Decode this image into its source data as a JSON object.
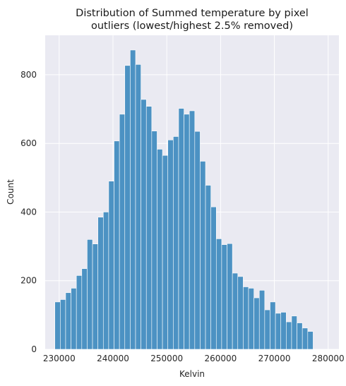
{
  "chart_data": {
    "type": "bar",
    "title_line1": "Distribution of Summed temperature by pixel",
    "title_line2": "outliers (lowest/highest 2.5% removed)",
    "xlabel": "Kelvin",
    "ylabel": "Count",
    "xlim": [
      227400,
      282000
    ],
    "ylim": [
      0,
      915
    ],
    "xticks": [
      230000,
      240000,
      250000,
      260000,
      270000,
      280000
    ],
    "xtick_labels": [
      "230000",
      "240000",
      "250000",
      "260000",
      "270000",
      "280000"
    ],
    "yticks": [
      0,
      200,
      400,
      600,
      800
    ],
    "ytick_labels": [
      "0",
      "200",
      "400",
      "600",
      "800"
    ],
    "grid": true,
    "background_color": "#eaeaf2",
    "bar_color": "#4c92c3",
    "bar_edge_color": "#ffffff",
    "bin_start": 229200,
    "bin_width": 1000,
    "values": [
      138,
      145,
      165,
      178,
      215,
      235,
      320,
      307,
      385,
      400,
      490,
      607,
      685,
      827,
      872,
      830,
      728,
      708,
      636,
      583,
      565,
      610,
      620,
      702,
      685,
      695,
      635,
      548,
      478,
      415,
      322,
      305,
      308,
      222,
      212,
      182,
      178,
      150,
      172,
      115,
      138,
      105,
      108,
      80,
      97,
      77,
      62,
      52
    ]
  }
}
